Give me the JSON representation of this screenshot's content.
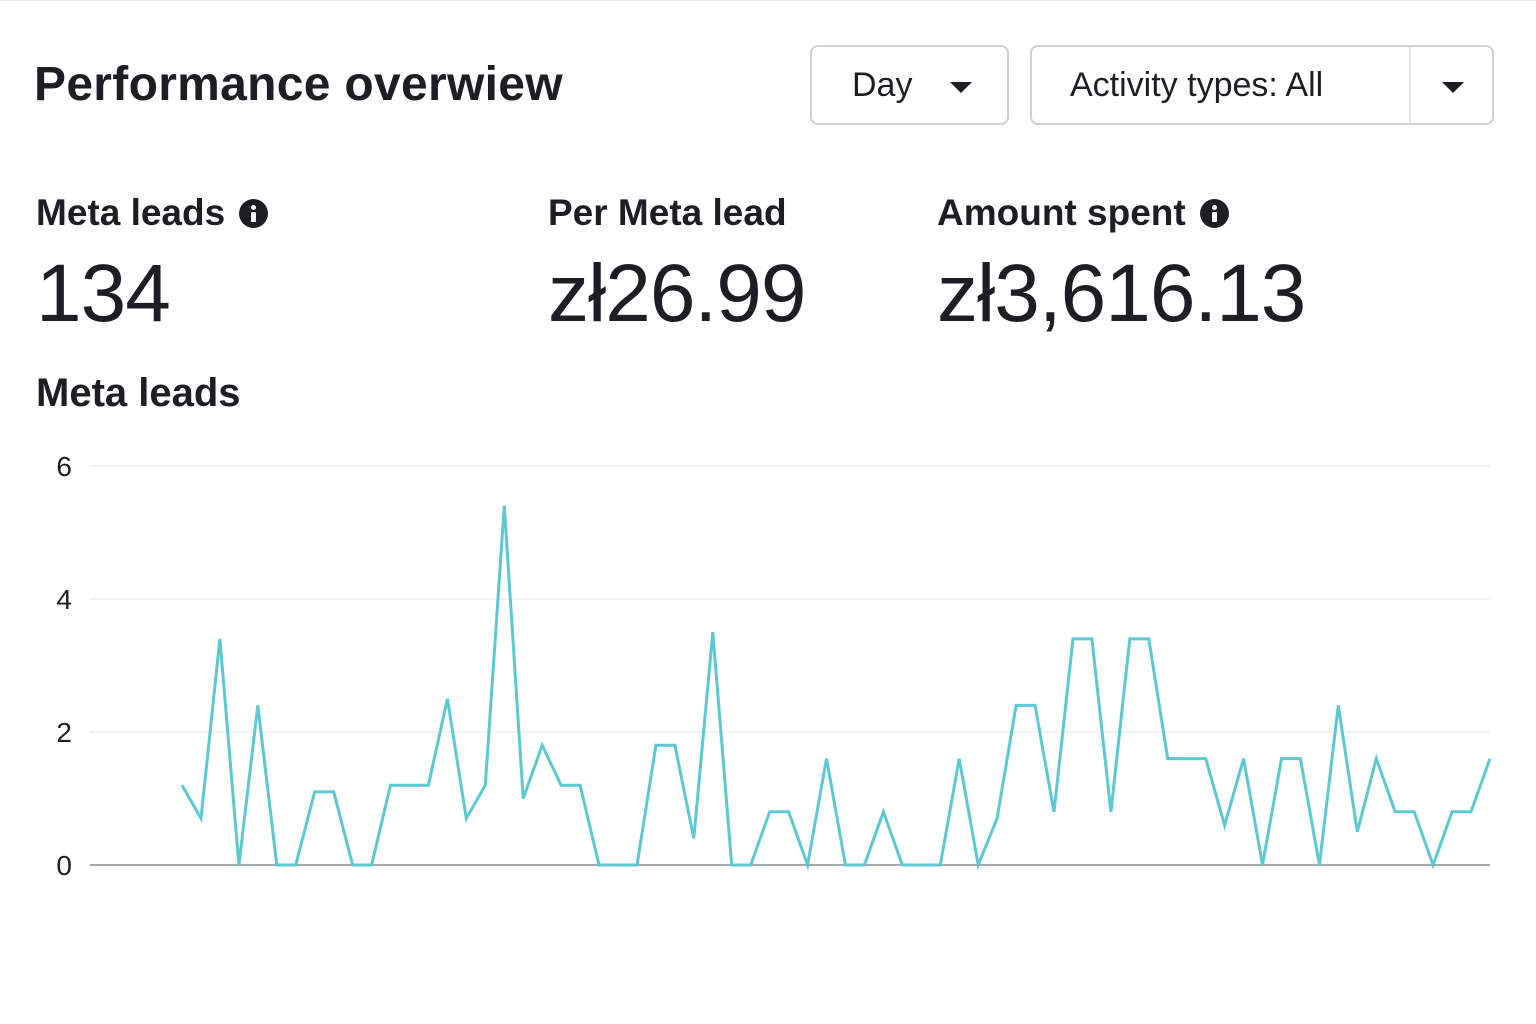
{
  "header": {
    "title": "Performance overwiew",
    "period_dropdown": {
      "label": "Day",
      "icon": "caret-down-icon"
    },
    "activity_dropdown": {
      "label": "Activity types: All",
      "icon": "caret-down-icon"
    }
  },
  "metrics": [
    {
      "label": "Meta leads",
      "value": "134",
      "has_info": true
    },
    {
      "label": "Per Meta lead",
      "value": "zł26.99",
      "has_info": false
    },
    {
      "label": "Amount spent",
      "value": "zł3,616.13",
      "has_info": true
    }
  ],
  "chart_data": {
    "type": "line",
    "title": "Meta leads",
    "ylim": [
      0,
      6
    ],
    "yticks": [
      "0",
      "2",
      "4",
      "6"
    ],
    "grid": true,
    "line_color": "#5bc8d3",
    "series": [
      {
        "values": [
          1.2,
          0.7,
          3.4,
          0,
          2.4,
          0,
          0,
          1.1,
          1.1,
          0,
          0,
          1.2,
          1.2,
          1.2,
          2.5,
          0.7,
          1.2,
          5.4,
          1.0,
          1.8,
          1.2,
          1.2,
          0,
          0,
          0,
          1.8,
          1.8,
          0.4,
          3.5,
          0,
          0,
          0.8,
          0.8,
          0,
          1.6,
          0,
          0,
          0.8,
          0,
          0,
          0,
          1.6,
          0,
          0.7,
          2.4,
          2.4,
          0.8,
          3.4,
          3.4,
          0.8,
          3.4,
          3.4,
          1.6,
          1.6,
          1.6,
          0.6,
          1.6,
          0,
          1.6,
          1.6,
          0,
          2.4,
          0.5,
          1.6,
          0.8,
          0.8,
          0,
          0.8,
          0.8,
          1.6
        ]
      }
    ]
  }
}
